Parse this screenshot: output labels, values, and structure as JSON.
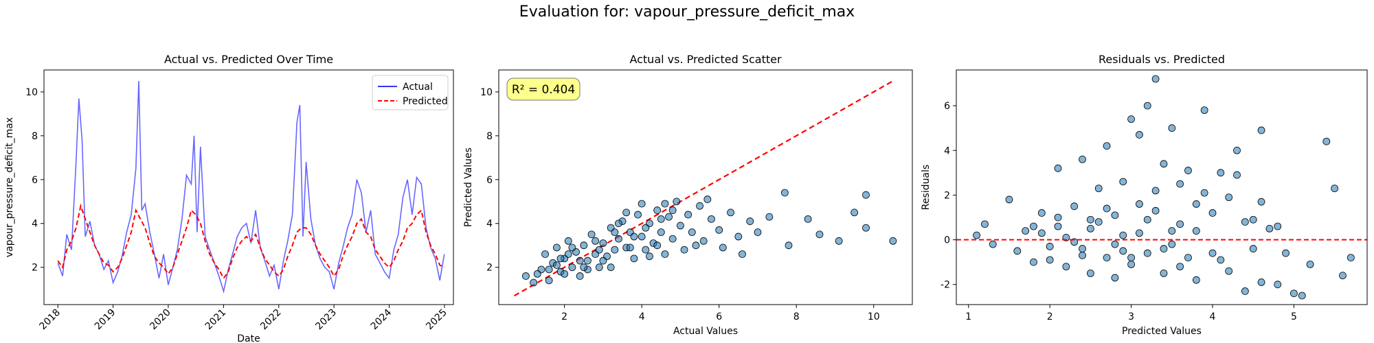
{
  "figure": {
    "suptitle": "Evaluation for: vapour_pressure_deficit_max"
  },
  "chart_data": [
    {
      "type": "line",
      "title": "Actual vs. Predicted Over Time",
      "xlabel": "Date",
      "ylabel": "vapour_pressure_deficit_max",
      "xlim": [
        "2017-10-01",
        "2025-03-01"
      ],
      "ylim": [
        0.3,
        11.0
      ],
      "xticks": [
        "2018",
        "2019",
        "2020",
        "2021",
        "2022",
        "2023",
        "2024",
        "2025"
      ],
      "xtick_rotation": 45,
      "yticks": [
        2,
        4,
        6,
        8,
        10
      ],
      "legend_position": "top-right",
      "grid": false,
      "series": [
        {
          "name": "Actual",
          "color": "#3333ff",
          "style": "solid",
          "x": [
            "2018-01-01",
            "2018-02-01",
            "2018-03-01",
            "2018-04-01",
            "2018-05-01",
            "2018-05-20",
            "2018-06-10",
            "2018-07-01",
            "2018-08-01",
            "2018-09-01",
            "2018-10-01",
            "2018-11-01",
            "2018-12-01",
            "2019-01-01",
            "2019-02-01",
            "2019-03-01",
            "2019-04-01",
            "2019-05-01",
            "2019-06-01",
            "2019-06-20",
            "2019-07-10",
            "2019-08-01",
            "2019-09-01",
            "2019-10-01",
            "2019-11-01",
            "2019-12-01",
            "2020-01-01",
            "2020-02-01",
            "2020-03-01",
            "2020-04-01",
            "2020-05-01",
            "2020-06-01",
            "2020-06-20",
            "2020-07-10",
            "2020-08-01",
            "2020-09-01",
            "2020-10-01",
            "2020-11-01",
            "2020-12-01",
            "2021-01-01",
            "2021-02-01",
            "2021-03-01",
            "2021-04-01",
            "2021-05-01",
            "2021-06-01",
            "2021-07-01",
            "2021-08-01",
            "2021-09-01",
            "2021-10-01",
            "2021-11-01",
            "2021-12-01",
            "2022-01-01",
            "2022-02-01",
            "2022-03-01",
            "2022-04-01",
            "2022-05-01",
            "2022-05-20",
            "2022-06-10",
            "2022-07-01",
            "2022-08-01",
            "2022-09-01",
            "2022-10-01",
            "2022-11-01",
            "2022-12-01",
            "2023-01-01",
            "2023-02-01",
            "2023-03-01",
            "2023-04-01",
            "2023-05-01",
            "2023-06-01",
            "2023-07-01",
            "2023-08-01",
            "2023-09-01",
            "2023-10-01",
            "2023-11-01",
            "2023-12-01",
            "2024-01-01",
            "2024-02-01",
            "2024-03-01",
            "2024-04-01",
            "2024-05-01",
            "2024-06-01",
            "2024-07-01",
            "2024-08-01",
            "2024-09-01",
            "2024-10-01",
            "2024-11-01",
            "2024-12-01",
            "2024-12-31"
          ],
          "y": [
            2.2,
            1.6,
            3.5,
            2.8,
            6.8,
            9.7,
            7.8,
            3.4,
            4.1,
            3.0,
            2.6,
            1.9,
            2.3,
            1.3,
            1.8,
            2.5,
            3.6,
            4.4,
            6.5,
            10.5,
            4.6,
            4.9,
            3.6,
            2.6,
            1.5,
            2.6,
            1.2,
            2.0,
            2.8,
            4.2,
            6.2,
            5.8,
            8.0,
            3.6,
            7.5,
            3.4,
            2.8,
            2.2,
            1.6,
            0.9,
            1.9,
            2.6,
            3.4,
            3.8,
            4.0,
            3.1,
            4.6,
            2.9,
            2.3,
            1.6,
            2.1,
            1.0,
            2.3,
            3.2,
            4.4,
            8.6,
            9.4,
            3.4,
            6.8,
            4.2,
            3.0,
            2.4,
            2.0,
            1.8,
            1.0,
            2.2,
            2.9,
            3.8,
            4.4,
            6.0,
            5.4,
            3.6,
            4.6,
            2.6,
            2.2,
            1.8,
            1.5,
            2.8,
            3.5,
            5.2,
            6.0,
            4.4,
            6.1,
            5.8,
            3.8,
            2.9,
            2.4,
            1.4,
            2.6
          ]
        },
        {
          "name": "Predicted",
          "color": "#ff0000",
          "style": "dashed",
          "x": [
            "2018-01-01",
            "2018-02-01",
            "2018-03-01",
            "2018-04-01",
            "2018-05-01",
            "2018-06-01",
            "2018-07-01",
            "2018-08-01",
            "2018-09-01",
            "2018-10-01",
            "2018-11-01",
            "2018-12-01",
            "2019-01-01",
            "2019-02-01",
            "2019-03-01",
            "2019-04-01",
            "2019-05-01",
            "2019-06-01",
            "2019-07-01",
            "2019-08-01",
            "2019-09-01",
            "2019-10-01",
            "2019-11-01",
            "2019-12-01",
            "2020-01-01",
            "2020-02-01",
            "2020-03-01",
            "2020-04-01",
            "2020-05-01",
            "2020-06-01",
            "2020-07-01",
            "2020-08-01",
            "2020-09-01",
            "2020-10-01",
            "2020-11-01",
            "2020-12-01",
            "2021-01-01",
            "2021-02-01",
            "2021-03-01",
            "2021-04-01",
            "2021-05-01",
            "2021-06-01",
            "2021-07-01",
            "2021-08-01",
            "2021-09-01",
            "2021-10-01",
            "2021-11-01",
            "2021-12-01",
            "2022-01-01",
            "2022-02-01",
            "2022-03-01",
            "2022-04-01",
            "2022-05-01",
            "2022-06-01",
            "2022-07-01",
            "2022-08-01",
            "2022-09-01",
            "2022-10-01",
            "2022-11-01",
            "2022-12-01",
            "2023-01-01",
            "2023-02-01",
            "2023-03-01",
            "2023-04-01",
            "2023-05-01",
            "2023-06-01",
            "2023-07-01",
            "2023-08-01",
            "2023-09-01",
            "2023-10-01",
            "2023-11-01",
            "2023-12-01",
            "2024-01-01",
            "2024-02-01",
            "2024-03-01",
            "2024-04-01",
            "2024-05-01",
            "2024-06-01",
            "2024-07-01",
            "2024-08-01",
            "2024-09-01",
            "2024-10-01",
            "2024-11-01",
            "2024-12-01",
            "2024-12-31"
          ],
          "y": [
            2.3,
            2.0,
            2.8,
            3.2,
            3.8,
            4.8,
            4.2,
            3.6,
            3.0,
            2.6,
            2.2,
            2.1,
            1.8,
            2.0,
            2.4,
            3.0,
            3.6,
            4.6,
            4.2,
            3.8,
            3.1,
            2.5,
            2.2,
            2.0,
            1.7,
            2.0,
            2.6,
            3.2,
            3.8,
            4.6,
            4.4,
            4.0,
            3.2,
            2.6,
            2.2,
            1.9,
            1.5,
            1.8,
            2.4,
            2.9,
            3.2,
            3.4,
            3.2,
            3.5,
            2.9,
            2.4,
            2.1,
            1.8,
            1.6,
            1.9,
            2.5,
            3.0,
            3.6,
            3.8,
            3.8,
            3.5,
            3.0,
            2.6,
            2.3,
            2.0,
            1.6,
            1.9,
            2.5,
            3.0,
            3.4,
            4.0,
            4.2,
            3.6,
            3.4,
            2.8,
            2.5,
            2.2,
            2.0,
            2.3,
            2.8,
            3.2,
            3.8,
            4.0,
            4.4,
            4.6,
            3.6,
            3.0,
            2.6,
            2.1,
            2.0
          ]
        }
      ]
    },
    {
      "type": "scatter",
      "title": "Actual vs. Predicted Scatter",
      "xlabel": "Actual Values",
      "ylabel": "Predicted Values",
      "xlim": [
        0.3,
        11.0
      ],
      "ylim": [
        0.3,
        11.0
      ],
      "xticks": [
        2,
        4,
        6,
        8,
        10
      ],
      "yticks": [
        2,
        4,
        6,
        8,
        10
      ],
      "annotation": "R² = 0.404",
      "annotation_position": "top-left",
      "identity_line": {
        "from": [
          0.7,
          0.7
        ],
        "to": [
          10.5,
          10.5
        ],
        "color": "#ff0000",
        "style": "dashed"
      },
      "point_color": "#1f77b4",
      "grid": false,
      "points": [
        [
          1.0,
          1.6
        ],
        [
          1.2,
          1.3
        ],
        [
          1.4,
          1.9
        ],
        [
          1.5,
          2.6
        ],
        [
          1.6,
          1.4
        ],
        [
          1.7,
          2.2
        ],
        [
          1.8,
          2.9
        ],
        [
          1.9,
          1.8
        ],
        [
          2.0,
          2.4
        ],
        [
          2.1,
          3.2
        ],
        [
          2.2,
          2.0
        ],
        [
          2.3,
          2.7
        ],
        [
          2.4,
          1.6
        ],
        [
          2.5,
          3.0
        ],
        [
          2.6,
          2.3
        ],
        [
          2.7,
          3.5
        ],
        [
          2.8,
          2.6
        ],
        [
          2.9,
          2.0
        ],
        [
          3.0,
          3.1
        ],
        [
          3.1,
          2.5
        ],
        [
          3.2,
          3.8
        ],
        [
          3.3,
          2.8
        ],
        [
          3.4,
          3.3
        ],
        [
          3.5,
          4.1
        ],
        [
          3.6,
          2.9
        ],
        [
          3.7,
          3.6
        ],
        [
          3.8,
          2.4
        ],
        [
          3.9,
          4.4
        ],
        [
          4.0,
          3.4
        ],
        [
          4.1,
          2.8
        ],
        [
          4.2,
          4.0
        ],
        [
          4.3,
          3.1
        ],
        [
          4.4,
          4.6
        ],
        [
          4.5,
          3.6
        ],
        [
          4.6,
          2.6
        ],
        [
          4.7,
          4.3
        ],
        [
          4.8,
          3.3
        ],
        [
          4.9,
          5.0
        ],
        [
          5.0,
          3.9
        ],
        [
          5.1,
          2.8
        ],
        [
          5.2,
          4.4
        ],
        [
          5.3,
          3.6
        ],
        [
          5.5,
          4.8
        ],
        [
          5.6,
          3.2
        ],
        [
          5.8,
          4.2
        ],
        [
          6.0,
          3.7
        ],
        [
          6.1,
          2.9
        ],
        [
          6.3,
          4.5
        ],
        [
          6.5,
          3.4
        ],
        [
          6.6,
          2.6
        ],
        [
          6.8,
          4.1
        ],
        [
          7.0,
          3.6
        ],
        [
          7.3,
          4.3
        ],
        [
          7.7,
          5.4
        ],
        [
          7.8,
          3.0
        ],
        [
          8.3,
          4.2
        ],
        [
          8.6,
          3.5
        ],
        [
          9.1,
          3.2
        ],
        [
          9.5,
          4.5
        ],
        [
          9.8,
          3.8
        ],
        [
          9.8,
          5.3
        ],
        [
          10.5,
          3.2
        ],
        [
          1.3,
          1.7
        ],
        [
          1.8,
          2.1
        ],
        [
          2.2,
          2.9
        ],
        [
          2.6,
          1.9
        ],
        [
          3.0,
          2.3
        ],
        [
          3.3,
          3.6
        ],
        [
          3.7,
          2.9
        ],
        [
          4.0,
          4.9
        ],
        [
          4.4,
          3.0
        ],
        [
          4.8,
          4.6
        ],
        [
          5.4,
          3.0
        ],
        [
          5.7,
          5.1
        ],
        [
          2.0,
          1.7
        ],
        [
          2.4,
          2.3
        ],
        [
          2.8,
          3.2
        ],
        [
          3.2,
          2.0
        ],
        [
          3.6,
          4.5
        ],
        [
          4.2,
          2.5
        ],
        [
          4.6,
          4.9
        ],
        [
          2.1,
          2.6
        ],
        [
          2.5,
          2.0
        ],
        [
          2.9,
          2.8
        ],
        [
          3.4,
          4.0
        ],
        [
          3.8,
          3.4
        ],
        [
          4.1,
          3.8
        ],
        [
          4.5,
          4.2
        ],
        [
          1.6,
          1.9
        ],
        [
          1.9,
          2.4
        ]
      ]
    },
    {
      "type": "scatter",
      "title": "Residuals vs. Predicted",
      "xlabel": "Predicted Values",
      "ylabel": "Residuals",
      "xlim": [
        0.85,
        5.9
      ],
      "ylim": [
        -2.9,
        7.6
      ],
      "xticks": [
        1,
        2,
        3,
        4,
        5
      ],
      "yticks": [
        -2,
        0,
        2,
        4,
        6
      ],
      "zero_line": {
        "y": 0,
        "color": "#ff0000",
        "style": "dashed"
      },
      "point_color": "#1f77b4",
      "grid": false,
      "points": [
        [
          1.1,
          0.2
        ],
        [
          1.2,
          0.7
        ],
        [
          1.3,
          -0.2
        ],
        [
          1.5,
          1.8
        ],
        [
          1.6,
          -0.5
        ],
        [
          1.7,
          0.4
        ],
        [
          1.8,
          -1.0
        ],
        [
          1.9,
          1.2
        ],
        [
          2.0,
          -0.3
        ],
        [
          2.1,
          3.2
        ],
        [
          2.1,
          0.6
        ],
        [
          2.2,
          -1.2
        ],
        [
          2.3,
          1.5
        ],
        [
          2.4,
          -0.4
        ],
        [
          2.4,
          3.6
        ],
        [
          2.5,
          0.9
        ],
        [
          2.5,
          -1.5
        ],
        [
          2.6,
          2.3
        ],
        [
          2.7,
          -0.8
        ],
        [
          2.7,
          4.2
        ],
        [
          2.8,
          1.1
        ],
        [
          2.8,
          -1.7
        ],
        [
          2.9,
          2.6
        ],
        [
          2.9,
          0.2
        ],
        [
          3.0,
          5.4
        ],
        [
          3.0,
          -1.1
        ],
        [
          3.1,
          4.7
        ],
        [
          3.1,
          1.6
        ],
        [
          3.2,
          6.0
        ],
        [
          3.2,
          -0.6
        ],
        [
          3.3,
          7.2
        ],
        [
          3.3,
          2.2
        ],
        [
          3.4,
          -1.5
        ],
        [
          3.4,
          3.4
        ],
        [
          3.5,
          0.4
        ],
        [
          3.5,
          5.0
        ],
        [
          3.6,
          -1.2
        ],
        [
          3.6,
          2.5
        ],
        [
          3.7,
          3.1
        ],
        [
          3.7,
          -0.8
        ],
        [
          3.8,
          1.6
        ],
        [
          3.8,
          -1.8
        ],
        [
          3.9,
          5.8
        ],
        [
          3.9,
          2.1
        ],
        [
          4.0,
          -0.6
        ],
        [
          4.0,
          1.2
        ],
        [
          4.1,
          3.0
        ],
        [
          4.2,
          -1.4
        ],
        [
          4.3,
          2.9
        ],
        [
          4.3,
          4.0
        ],
        [
          4.4,
          0.8
        ],
        [
          4.4,
          -2.3
        ],
        [
          4.5,
          -0.4
        ],
        [
          4.6,
          1.7
        ],
        [
          4.6,
          4.9
        ],
        [
          4.6,
          -1.9
        ],
        [
          4.7,
          0.5
        ],
        [
          4.8,
          -2.0
        ],
        [
          4.9,
          -0.6
        ],
        [
          5.0,
          -2.4
        ],
        [
          5.1,
          -2.5
        ],
        [
          5.2,
          -1.1
        ],
        [
          5.4,
          4.4
        ],
        [
          5.5,
          2.3
        ],
        [
          5.6,
          -1.6
        ],
        [
          5.7,
          -0.8
        ],
        [
          1.9,
          0.3
        ],
        [
          2.2,
          0.1
        ],
        [
          2.5,
          0.5
        ],
        [
          2.8,
          -0.2
        ],
        [
          3.1,
          0.3
        ],
        [
          3.4,
          -0.4
        ],
        [
          3.6,
          0.7
        ],
        [
          2.0,
          -0.9
        ],
        [
          2.3,
          -0.1
        ],
        [
          2.6,
          0.8
        ],
        [
          2.9,
          -0.5
        ],
        [
          3.2,
          0.9
        ],
        [
          3.5,
          -0.2
        ],
        [
          3.8,
          0.4
        ],
        [
          4.1,
          -0.9
        ],
        [
          4.5,
          0.9
        ],
        [
          2.1,
          1.0
        ],
        [
          2.7,
          1.4
        ],
        [
          3.0,
          -0.8
        ],
        [
          3.3,
          1.3
        ],
        [
          1.8,
          0.6
        ],
        [
          2.4,
          -0.7
        ],
        [
          4.2,
          1.9
        ],
        [
          4.8,
          0.6
        ]
      ]
    }
  ]
}
